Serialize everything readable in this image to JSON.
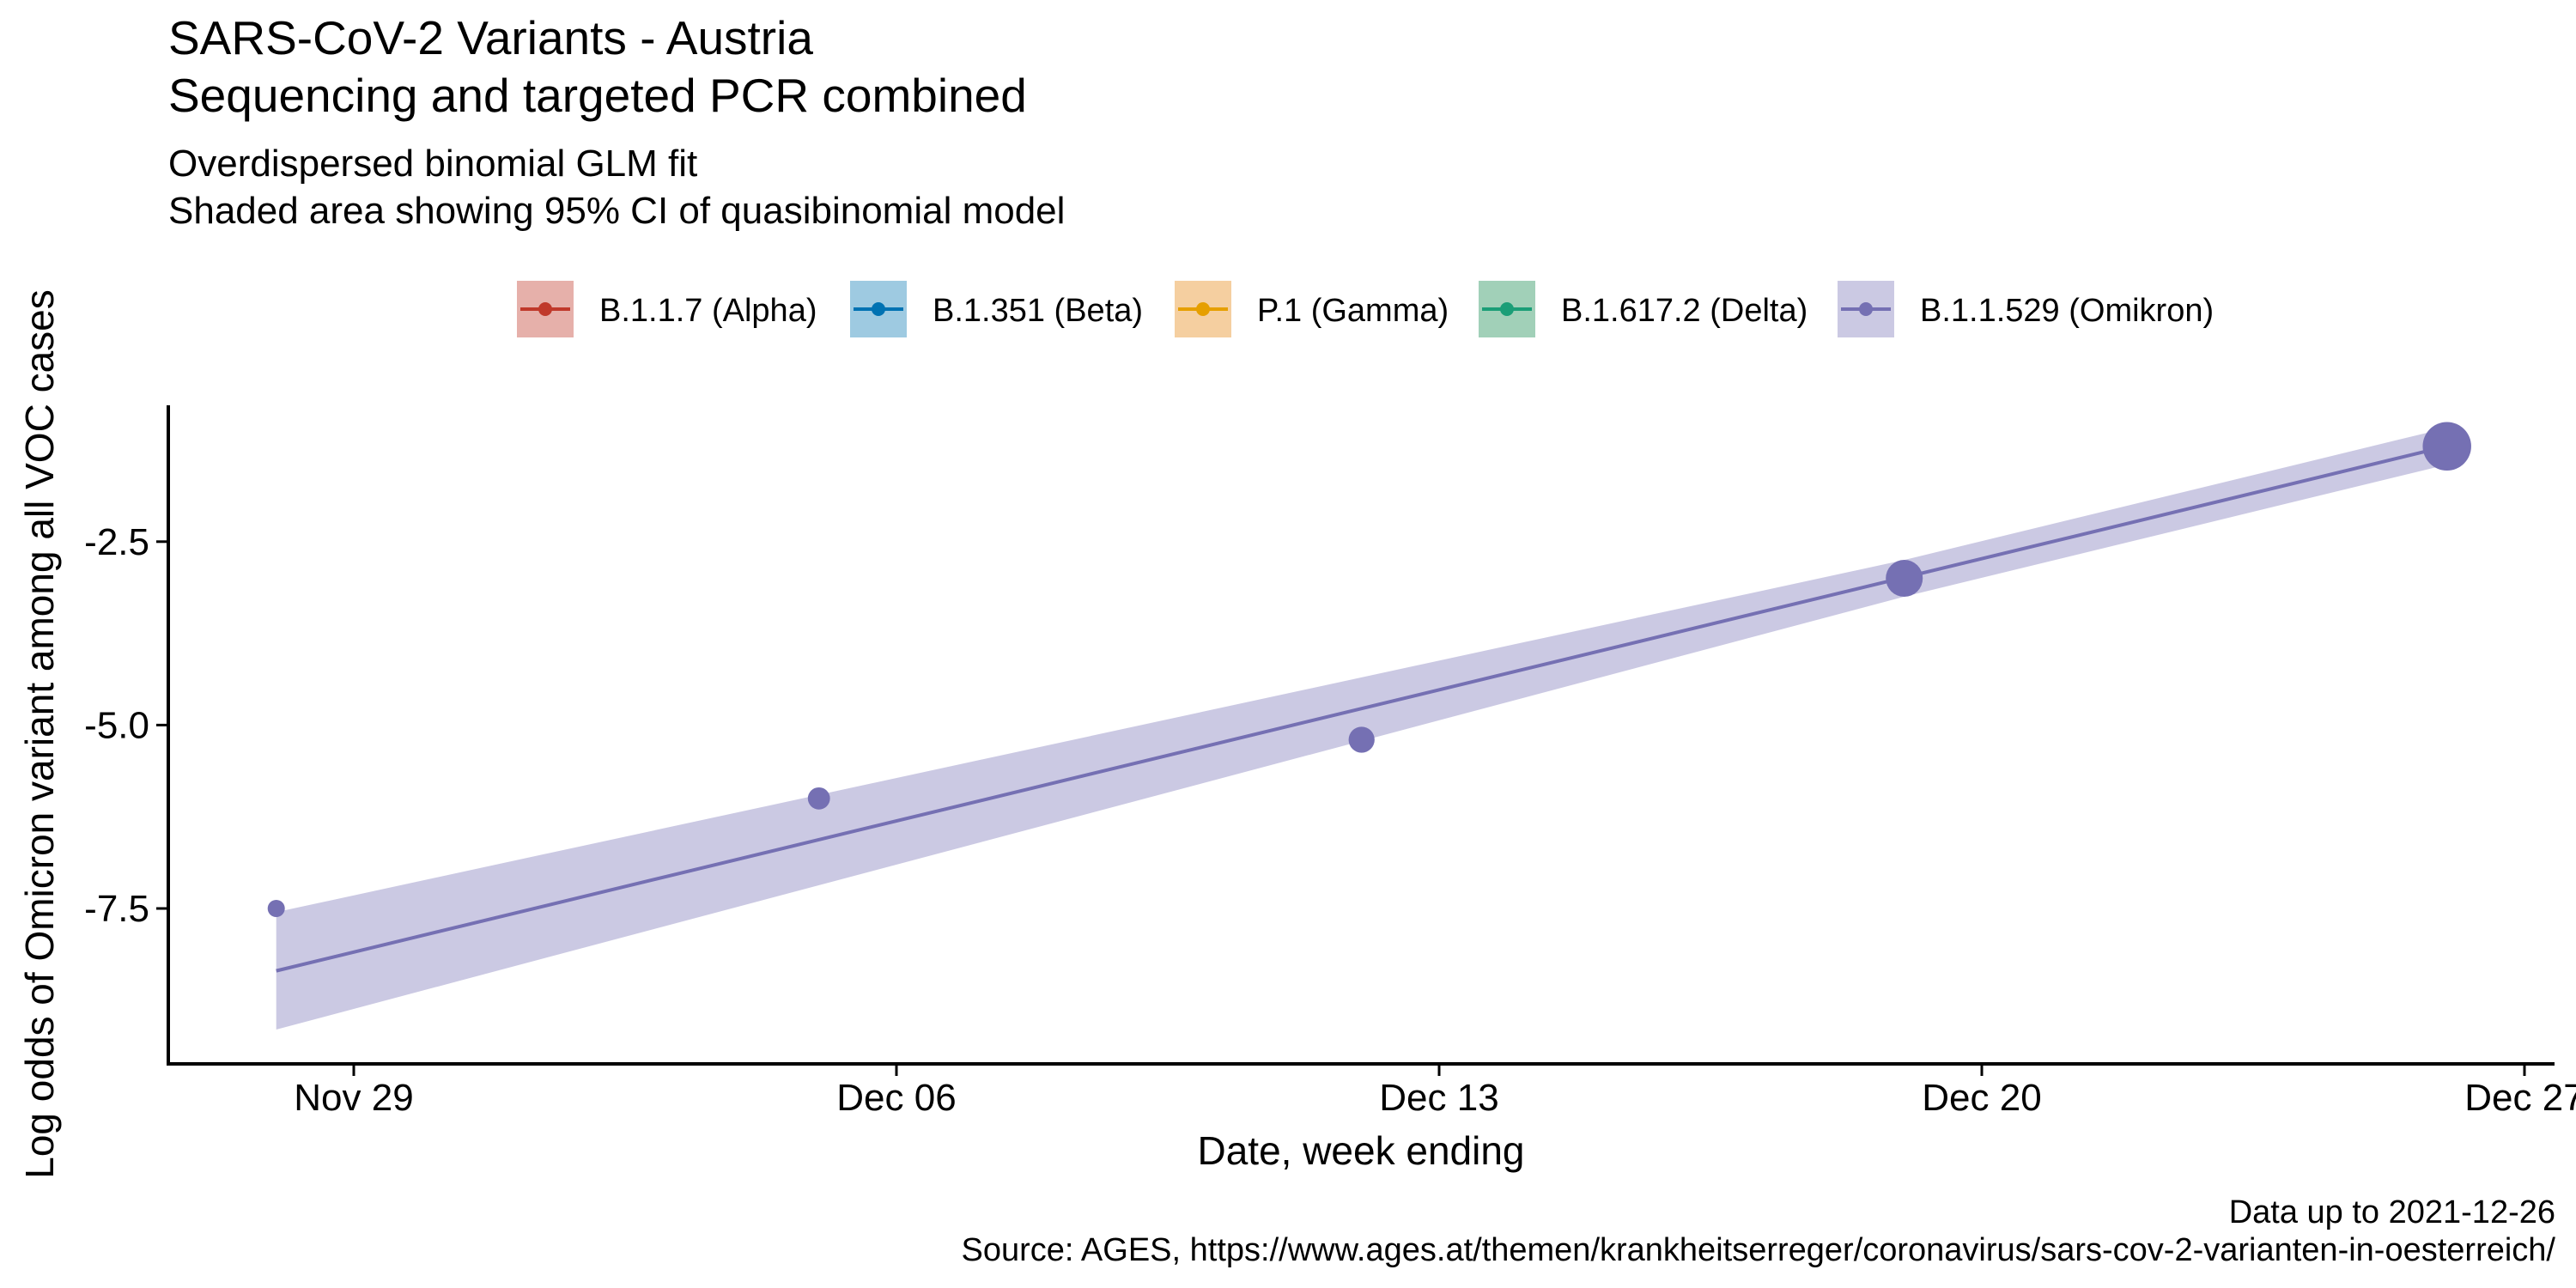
{
  "chart_data": {
    "type": "line",
    "title": "SARS-CoV-2 Variants - Austria",
    "title_line2": "Sequencing and targeted PCR combined",
    "subtitle": "Overdispersed binomial GLM fit",
    "subtitle_line2": "Shaded area showing 95% CI of quasibinomial model",
    "xlabel": "Date, week ending",
    "ylabel": "Log odds of Omicron variant among all VOC cases",
    "x_ticks": [
      "Nov 29",
      "Dec 06",
      "Dec 13",
      "Dec 20",
      "Dec 27"
    ],
    "x_tick_dates": [
      "2021-11-29",
      "2021-12-06",
      "2021-12-13",
      "2021-12-20",
      "2021-12-27"
    ],
    "y_ticks": [
      -2.5,
      -5.0,
      -7.5
    ],
    "y_tick_labels": [
      "-2.5",
      "-5.0",
      "-7.5"
    ],
    "xlim": [
      "2021-11-26",
      "2021-12-27"
    ],
    "ylim": [
      -9.4,
      -0.2
    ],
    "grid": false,
    "legend_position": "top",
    "legend": [
      {
        "label": "B.1.1.7 (Alpha)",
        "color": "#c0392b",
        "fill": "#e6b0aa"
      },
      {
        "label": "B.1.351 (Beta)",
        "color": "#0072b2",
        "fill": "#9ecae1"
      },
      {
        "label": "P.1 (Gamma)",
        "color": "#e69f00",
        "fill": "#f5cfa0"
      },
      {
        "label": "B.1.617.2 (Delta)",
        "color": "#1b9e77",
        "fill": "#a1d0b8"
      },
      {
        "label": "B.1.1.529 (Omikron)",
        "color": "#7570b3",
        "fill": "#cbc9e3"
      }
    ],
    "series": [
      {
        "name": "B.1.1.529 (Omikron)",
        "points": [
          {
            "x": "2021-11-28",
            "y": -7.5,
            "weight": 1
          },
          {
            "x": "2021-12-05",
            "y": -6.0,
            "weight": 2
          },
          {
            "x": "2021-12-12",
            "y": -5.2,
            "weight": 3
          },
          {
            "x": "2021-12-19",
            "y": -3.0,
            "weight": 7
          },
          {
            "x": "2021-12-26",
            "y": -1.2,
            "weight": 13
          }
        ],
        "fit_line": [
          {
            "x": "2021-11-28",
            "y": -8.35
          },
          {
            "x": "2021-12-26",
            "y": -1.2
          }
        ],
        "ci_band": [
          {
            "x": "2021-11-28",
            "lower": -9.15,
            "upper": -7.55
          },
          {
            "x": "2021-12-19",
            "lower": -3.25,
            "upper": -2.75
          },
          {
            "x": "2021-12-26",
            "lower": -1.45,
            "upper": -0.95
          }
        ],
        "color": "#7570b3",
        "band_color": "#cbc9e3"
      }
    ],
    "caption_line1": "Data up to 2021-12-26",
    "caption_line2": "Source: AGES, https://www.ages.at/themen/krankheitserreger/coronavirus/sars-cov-2-varianten-in-oesterreich/"
  }
}
